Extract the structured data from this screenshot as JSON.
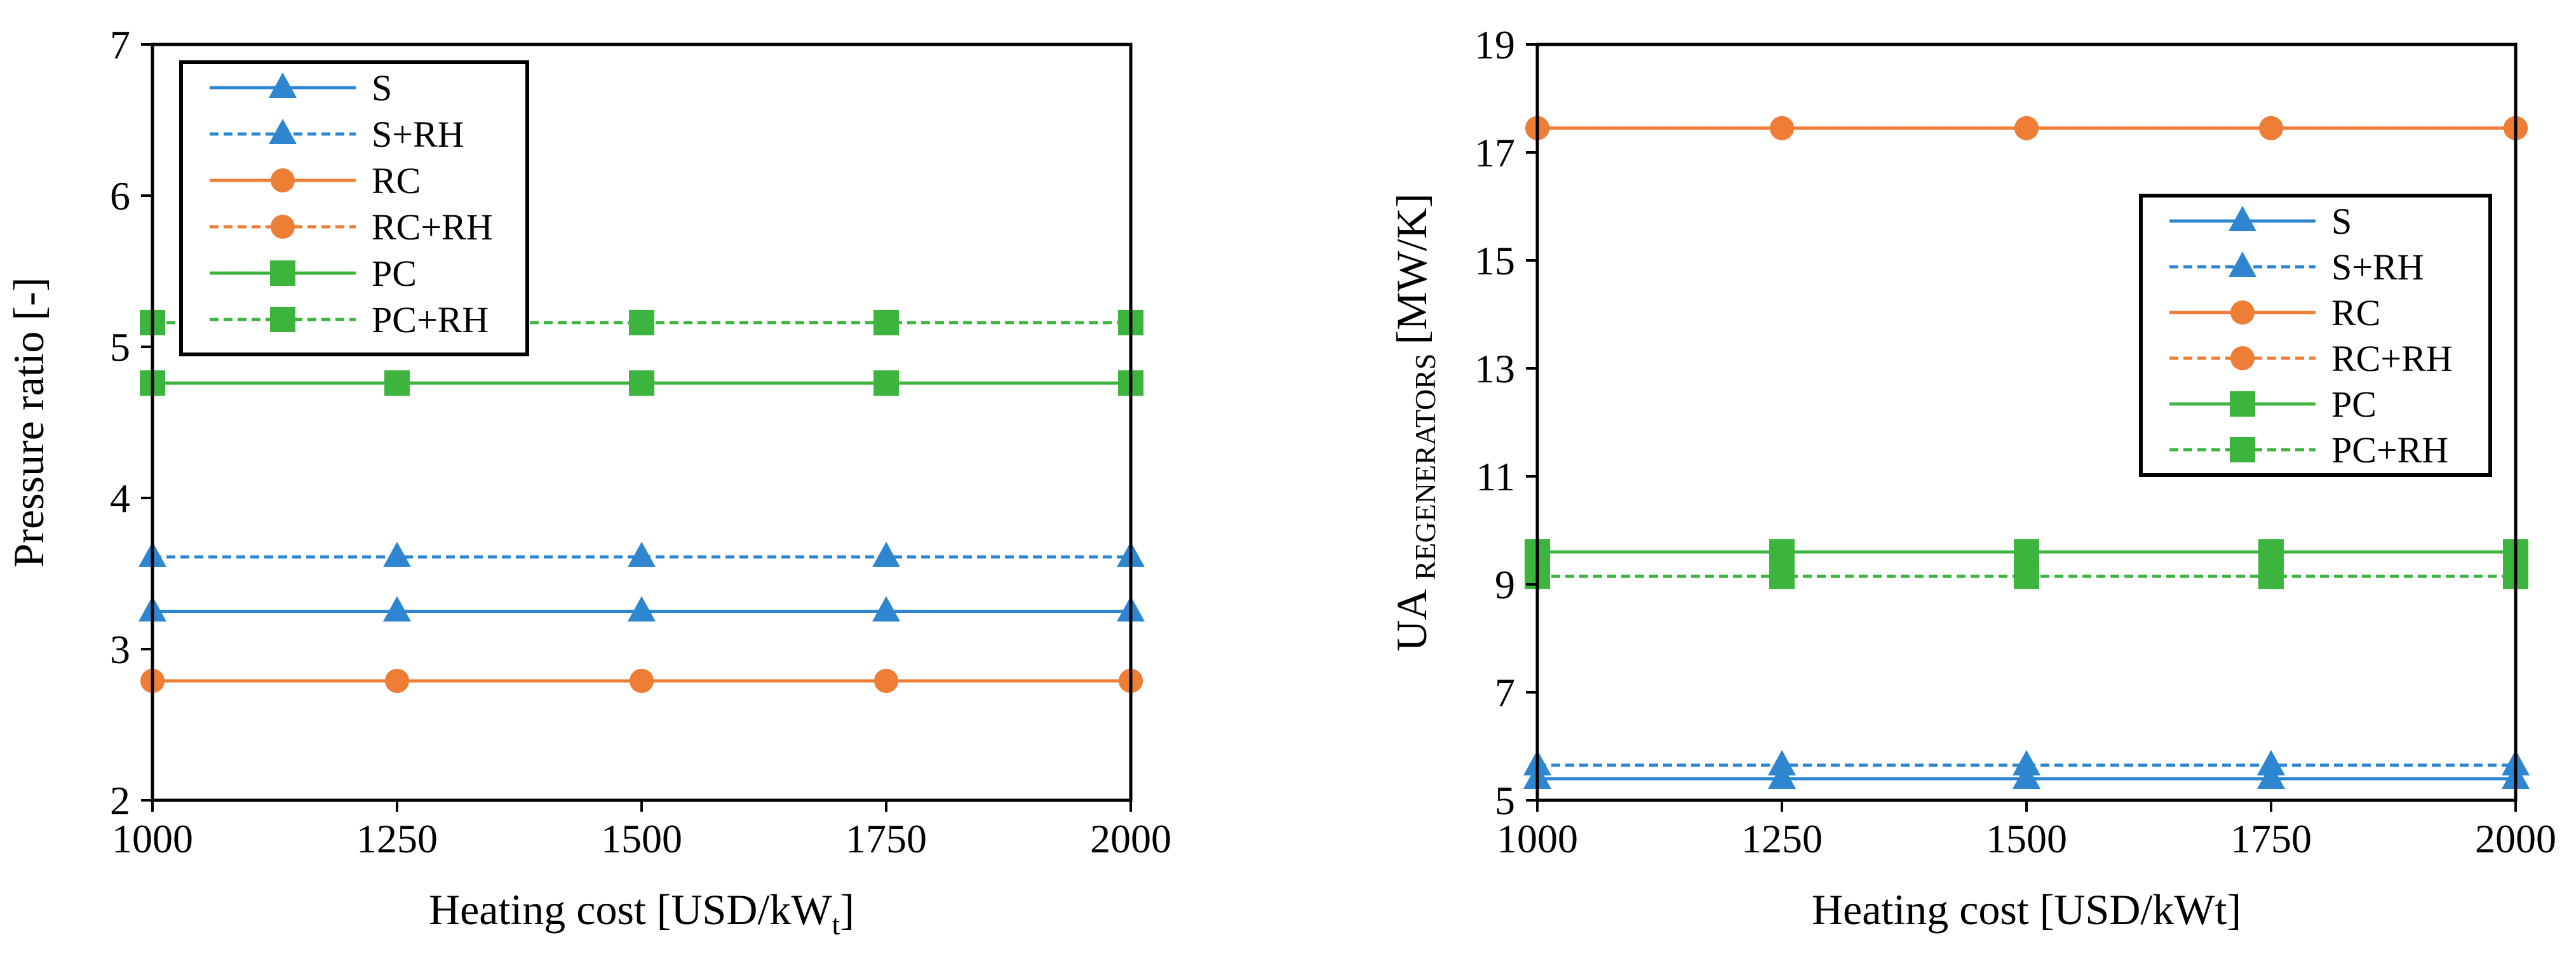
{
  "colors": {
    "S": "#2E86D1",
    "RC": "#EE7D35",
    "PC": "#3DB43D",
    "axis": "#000000"
  },
  "chart_data": [
    {
      "type": "line",
      "xlabel_main": "Heating cost [USD/kW",
      "xlabel_sub": "t",
      "xlabel_close": "]",
      "ylabel": "Pressure ratio [-]",
      "xlim": [
        1000,
        2000
      ],
      "ylim": [
        2,
        7
      ],
      "x": [
        1000,
        1250,
        1500,
        1750,
        2000
      ],
      "xticks": [
        "1000",
        "1250",
        "1500",
        "1750",
        "2000"
      ],
      "yticks": [
        {
          "value": 2,
          "label": "2"
        },
        {
          "value": 3,
          "label": "3"
        },
        {
          "value": 4,
          "label": "4"
        },
        {
          "value": 5,
          "label": "5"
        },
        {
          "value": 6,
          "label": "6"
        },
        {
          "value": 7,
          "label": "7"
        }
      ],
      "legend_position": "top-left",
      "series": [
        {
          "name": "S",
          "values": [
            3.25,
            3.25,
            3.25,
            3.25,
            3.25
          ],
          "color": "#2E86D1",
          "dash": false,
          "marker": "triangle"
        },
        {
          "name": "S+RH",
          "values": [
            3.61,
            3.61,
            3.61,
            3.61,
            3.61
          ],
          "color": "#2E86D1",
          "dash": true,
          "marker": "triangle"
        },
        {
          "name": "RC",
          "values": [
            2.79,
            2.79,
            2.79,
            2.79,
            2.79
          ],
          "color": "#EE7D35",
          "dash": false,
          "marker": "circle"
        },
        {
          "name": "RC+RH",
          "values": [
            2.79,
            2.79,
            2.79,
            2.79,
            2.79
          ],
          "color": "#EE7D35",
          "dash": true,
          "marker": "circle"
        },
        {
          "name": "PC",
          "values": [
            4.76,
            4.76,
            4.76,
            4.76,
            4.76
          ],
          "color": "#3DB43D",
          "dash": false,
          "marker": "square"
        },
        {
          "name": "PC+RH",
          "values": [
            5.16,
            5.16,
            5.16,
            5.16,
            5.16
          ],
          "color": "#3DB43D",
          "dash": true,
          "marker": "square"
        }
      ]
    },
    {
      "type": "line",
      "xlabel": "Heating cost [USD/kWt]",
      "ylabel_main": "UA",
      "ylabel_sub": "REGENERATORS",
      "ylabel_unit": "[MW/K]",
      "xlim": [
        1000,
        2000
      ],
      "ylim": [
        5,
        19
      ],
      "x": [
        1000,
        1250,
        1500,
        1750,
        2000
      ],
      "xticks": [
        "1000",
        "1250",
        "1500",
        "1750",
        "2000"
      ],
      "yticks": [
        {
          "value": 5,
          "label": "5"
        },
        {
          "value": 7,
          "label": "7"
        },
        {
          "value": 9,
          "label": "9"
        },
        {
          "value": 11,
          "label": "11"
        },
        {
          "value": 13,
          "label": "13"
        },
        {
          "value": 15,
          "label": "15"
        },
        {
          "value": 17,
          "label": "17"
        },
        {
          "value": 19,
          "label": "19"
        }
      ],
      "legend_position": "center-right",
      "series": [
        {
          "name": "S",
          "values": [
            5.4,
            5.4,
            5.4,
            5.4,
            5.4
          ],
          "color": "#2E86D1",
          "dash": false,
          "marker": "triangle"
        },
        {
          "name": "S+RH",
          "values": [
            5.65,
            5.65,
            5.65,
            5.65,
            5.65
          ],
          "color": "#2E86D1",
          "dash": true,
          "marker": "triangle"
        },
        {
          "name": "RC",
          "values": [
            17.45,
            17.45,
            17.45,
            17.45,
            17.45
          ],
          "color": "#EE7D35",
          "dash": false,
          "marker": "circle"
        },
        {
          "name": "RC+RH",
          "values": [
            17.45,
            17.45,
            17.45,
            17.45,
            17.45
          ],
          "color": "#EE7D35",
          "dash": true,
          "marker": "circle"
        },
        {
          "name": "PC",
          "values": [
            9.6,
            9.6,
            9.6,
            9.6,
            9.6
          ],
          "color": "#3DB43D",
          "dash": false,
          "marker": "square"
        },
        {
          "name": "PC+RH",
          "values": [
            9.15,
            9.15,
            9.15,
            9.15,
            9.15
          ],
          "color": "#3DB43D",
          "dash": true,
          "marker": "square"
        }
      ]
    }
  ]
}
